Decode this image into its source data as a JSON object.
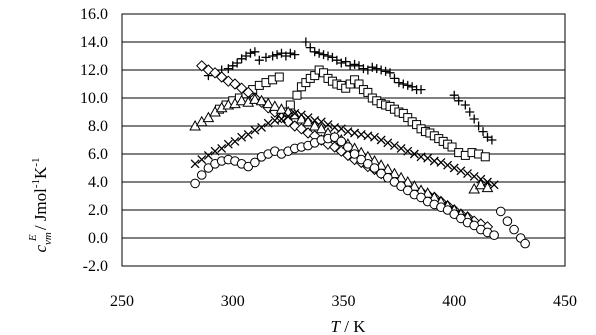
{
  "chart_data": {
    "type": "scatter",
    "title": "",
    "xlabel": "T / K",
    "ylabel": "c_vm^E / Jmol^-1 K^-1",
    "xlabel_parts": {
      "var": "T",
      "rest": " / K"
    },
    "ylabel_parts": {
      "var": "c",
      "sub": "vm",
      "sup": "E",
      "rest": " / Jmol",
      "exp1": "-1",
      "unit2": "K",
      "exp2": "-1"
    },
    "xlim": [
      250,
      450
    ],
    "ylim": [
      -2.0,
      16.0
    ],
    "x_ticks": [
      "250",
      "300",
      "350",
      "400",
      "450"
    ],
    "y_ticks": [
      "-2.0",
      "0.0",
      "2.0",
      "4.0",
      "6.0",
      "8.0",
      "10.0",
      "12.0",
      "14.0",
      "16.0"
    ],
    "grid": "horizontal",
    "legend": "none",
    "series": [
      {
        "marker": "plus",
        "points": [
          [
            289,
            11.6
          ],
          [
            292,
            11.8
          ],
          [
            295,
            12.0
          ],
          [
            298,
            12.1
          ],
          [
            300,
            12.3
          ],
          [
            302,
            12.5
          ],
          [
            304,
            12.8
          ],
          [
            306,
            13.0
          ],
          [
            308,
            13.2
          ],
          [
            310,
            13.3
          ],
          [
            312,
            12.7
          ],
          [
            315,
            12.9
          ],
          [
            318,
            13.0
          ],
          [
            320,
            13.1
          ],
          [
            322,
            13.2
          ],
          [
            324,
            13.0
          ],
          [
            326,
            13.2
          ],
          [
            328,
            13.1
          ],
          [
            333,
            14.0
          ],
          [
            335,
            13.6
          ],
          [
            337,
            13.3
          ],
          [
            339,
            13.2
          ],
          [
            341,
            13.1
          ],
          [
            343,
            13.0
          ],
          [
            345,
            12.9
          ],
          [
            347,
            12.7
          ],
          [
            349,
            12.5
          ],
          [
            351,
            12.6
          ],
          [
            353,
            12.3
          ],
          [
            355,
            12.4
          ],
          [
            357,
            12.3
          ],
          [
            359,
            12.1
          ],
          [
            361,
            12.0
          ],
          [
            363,
            12.2
          ],
          [
            365,
            12.1
          ],
          [
            367,
            12.0
          ],
          [
            369,
            11.9
          ],
          [
            371,
            11.8
          ],
          [
            373,
            11.4
          ],
          [
            375,
            11.1
          ],
          [
            377,
            11.0
          ],
          [
            379,
            10.9
          ],
          [
            381,
            10.8
          ],
          [
            383,
            10.6
          ],
          [
            385,
            10.6
          ],
          [
            400,
            10.2
          ],
          [
            402,
            9.8
          ],
          [
            405,
            9.5
          ],
          [
            407,
            9.0
          ],
          [
            409,
            8.5
          ],
          [
            411,
            8.0
          ],
          [
            413,
            7.6
          ],
          [
            415,
            7.2
          ],
          [
            417,
            7.0
          ]
        ]
      },
      {
        "marker": "square",
        "points": [
          [
            294,
            9.2
          ],
          [
            297,
            9.5
          ],
          [
            300,
            9.8
          ],
          [
            303,
            10.0
          ],
          [
            306,
            10.3
          ],
          [
            309,
            10.6
          ],
          [
            312,
            10.9
          ],
          [
            315,
            11.1
          ],
          [
            318,
            11.3
          ],
          [
            321,
            11.5
          ],
          [
            323,
            9.0
          ],
          [
            326,
            9.5
          ],
          [
            329,
            10.2
          ],
          [
            331,
            10.8
          ],
          [
            333,
            11.1
          ],
          [
            335,
            11.4
          ],
          [
            337,
            11.6
          ],
          [
            339,
            12.0
          ],
          [
            341,
            11.8
          ],
          [
            343,
            11.4
          ],
          [
            345,
            11.2
          ],
          [
            347,
            11.0
          ],
          [
            349,
            10.9
          ],
          [
            351,
            10.7
          ],
          [
            353,
            11.0
          ],
          [
            355,
            11.3
          ],
          [
            357,
            11.0
          ],
          [
            359,
            10.6
          ],
          [
            361,
            10.4
          ],
          [
            363,
            10.0
          ],
          [
            365,
            9.8
          ],
          [
            367,
            9.6
          ],
          [
            369,
            9.5
          ],
          [
            371,
            9.4
          ],
          [
            373,
            9.2
          ],
          [
            375,
            9.0
          ],
          [
            377,
            8.9
          ],
          [
            379,
            8.6
          ],
          [
            381,
            8.3
          ],
          [
            383,
            8.1
          ],
          [
            385,
            7.8
          ],
          [
            387,
            7.6
          ],
          [
            389,
            7.5
          ],
          [
            391,
            7.3
          ],
          [
            393,
            7.1
          ],
          [
            395,
            6.9
          ],
          [
            397,
            6.7
          ],
          [
            399,
            6.5
          ],
          [
            402,
            6.1
          ],
          [
            405,
            5.9
          ],
          [
            408,
            6.1
          ],
          [
            411,
            6.0
          ],
          [
            414,
            5.8
          ]
        ]
      },
      {
        "marker": "diamond",
        "points": [
          [
            286,
            12.3
          ],
          [
            289,
            12.0
          ],
          [
            292,
            11.8
          ],
          [
            295,
            11.5
          ],
          [
            298,
            11.2
          ],
          [
            301,
            11.0
          ],
          [
            304,
            10.7
          ],
          [
            307,
            10.4
          ],
          [
            310,
            10.0
          ],
          [
            313,
            9.7
          ],
          [
            316,
            9.3
          ],
          [
            319,
            9.0
          ],
          [
            322,
            8.6
          ],
          [
            325,
            8.3
          ],
          [
            328,
            8.0
          ],
          [
            331,
            7.8
          ],
          [
            334,
            7.5
          ],
          [
            337,
            7.3
          ],
          [
            340,
            7.0
          ],
          [
            343,
            6.7
          ],
          [
            346,
            6.5
          ],
          [
            349,
            6.2
          ],
          [
            352,
            5.9
          ],
          [
            355,
            5.6
          ],
          [
            358,
            5.4
          ],
          [
            361,
            5.1
          ],
          [
            364,
            4.9
          ],
          [
            367,
            4.6
          ],
          [
            370,
            4.4
          ],
          [
            373,
            4.1
          ],
          [
            376,
            3.9
          ],
          [
            379,
            3.7
          ],
          [
            382,
            3.5
          ],
          [
            385,
            3.3
          ],
          [
            388,
            3.1
          ],
          [
            391,
            2.9
          ],
          [
            394,
            2.6
          ],
          [
            397,
            2.3
          ],
          [
            400,
            2.0
          ],
          [
            403,
            1.7
          ],
          [
            406,
            1.5
          ],
          [
            409,
            1.2
          ],
          [
            412,
            1.0
          ],
          [
            415,
            0.8
          ]
        ]
      },
      {
        "marker": "triangle",
        "points": [
          [
            283,
            8.0
          ],
          [
            286,
            8.3
          ],
          [
            289,
            8.6
          ],
          [
            292,
            9.0
          ],
          [
            295,
            9.3
          ],
          [
            298,
            9.5
          ],
          [
            301,
            9.6
          ],
          [
            304,
            9.8
          ],
          [
            307,
            9.7
          ],
          [
            310,
            9.9
          ],
          [
            313,
            9.8
          ],
          [
            316,
            9.6
          ],
          [
            319,
            9.4
          ],
          [
            322,
            9.2
          ],
          [
            325,
            9.0
          ],
          [
            328,
            8.8
          ],
          [
            331,
            8.5
          ],
          [
            334,
            8.3
          ],
          [
            337,
            8.0
          ],
          [
            340,
            7.8
          ],
          [
            343,
            7.5
          ],
          [
            346,
            7.2
          ],
          [
            349,
            7.0
          ],
          [
            352,
            6.7
          ],
          [
            355,
            6.4
          ],
          [
            358,
            6.1
          ],
          [
            361,
            5.8
          ],
          [
            364,
            5.5
          ],
          [
            367,
            5.2
          ],
          [
            370,
            4.9
          ],
          [
            373,
            4.6
          ],
          [
            376,
            4.3
          ],
          [
            379,
            4.0
          ],
          [
            382,
            3.7
          ],
          [
            385,
            3.4
          ],
          [
            388,
            3.2
          ],
          [
            391,
            2.9
          ],
          [
            394,
            2.6
          ],
          [
            397,
            2.3
          ],
          [
            400,
            2.0
          ],
          [
            403,
            1.7
          ],
          [
            406,
            1.5
          ],
          [
            409,
            3.5
          ],
          [
            412,
            3.8
          ],
          [
            415,
            3.6
          ]
        ]
      },
      {
        "marker": "cross",
        "points": [
          [
            283,
            5.3
          ],
          [
            286,
            5.6
          ],
          [
            289,
            5.9
          ],
          [
            292,
            6.2
          ],
          [
            295,
            6.4
          ],
          [
            298,
            6.7
          ],
          [
            301,
            6.9
          ],
          [
            304,
            7.2
          ],
          [
            307,
            7.4
          ],
          [
            310,
            7.7
          ],
          [
            313,
            7.9
          ],
          [
            316,
            8.2
          ],
          [
            319,
            8.4
          ],
          [
            322,
            8.5
          ],
          [
            325,
            8.7
          ],
          [
            328,
            8.9
          ],
          [
            331,
            8.8
          ],
          [
            334,
            8.6
          ],
          [
            337,
            8.4
          ],
          [
            340,
            8.3
          ],
          [
            343,
            8.1
          ],
          [
            346,
            7.9
          ],
          [
            349,
            7.8
          ],
          [
            352,
            7.6
          ],
          [
            355,
            7.5
          ],
          [
            358,
            7.4
          ],
          [
            361,
            7.3
          ],
          [
            364,
            7.2
          ],
          [
            367,
            7.0
          ],
          [
            370,
            6.8
          ],
          [
            373,
            6.6
          ],
          [
            376,
            6.4
          ],
          [
            379,
            6.2
          ],
          [
            382,
            6.0
          ],
          [
            385,
            5.8
          ],
          [
            388,
            5.7
          ],
          [
            391,
            5.5
          ],
          [
            394,
            5.4
          ],
          [
            397,
            5.2
          ],
          [
            400,
            5.0
          ],
          [
            403,
            4.8
          ],
          [
            406,
            4.6
          ],
          [
            409,
            4.4
          ],
          [
            412,
            4.2
          ],
          [
            415,
            4.0
          ],
          [
            418,
            3.8
          ]
        ]
      },
      {
        "marker": "circle",
        "points": [
          [
            283,
            3.9
          ],
          [
            286,
            4.5
          ],
          [
            289,
            5.0
          ],
          [
            292,
            5.3
          ],
          [
            295,
            5.5
          ],
          [
            298,
            5.6
          ],
          [
            301,
            5.5
          ],
          [
            304,
            5.3
          ],
          [
            307,
            5.1
          ],
          [
            310,
            5.4
          ],
          [
            313,
            5.8
          ],
          [
            316,
            6.0
          ],
          [
            319,
            6.2
          ],
          [
            322,
            6.0
          ],
          [
            325,
            6.2
          ],
          [
            328,
            6.4
          ],
          [
            331,
            6.5
          ],
          [
            334,
            6.6
          ],
          [
            337,
            6.8
          ],
          [
            340,
            7.0
          ],
          [
            343,
            7.1
          ],
          [
            346,
            7.2
          ],
          [
            349,
            6.9
          ],
          [
            352,
            6.5
          ],
          [
            355,
            6.0
          ],
          [
            358,
            5.6
          ],
          [
            361,
            5.3
          ],
          [
            364,
            5.0
          ],
          [
            367,
            4.6
          ],
          [
            370,
            4.3
          ],
          [
            373,
            4.0
          ],
          [
            376,
            3.7
          ],
          [
            379,
            3.4
          ],
          [
            382,
            3.1
          ],
          [
            385,
            2.9
          ],
          [
            388,
            2.6
          ],
          [
            391,
            2.4
          ],
          [
            394,
            2.2
          ],
          [
            397,
            2.0
          ],
          [
            400,
            1.7
          ],
          [
            403,
            1.4
          ],
          [
            406,
            1.1
          ],
          [
            409,
            0.9
          ],
          [
            412,
            0.6
          ],
          [
            415,
            0.4
          ],
          [
            418,
            0.2
          ],
          [
            421,
            1.9
          ],
          [
            424,
            1.2
          ],
          [
            427,
            0.6
          ],
          [
            430,
            0.0
          ],
          [
            432,
            -0.4
          ]
        ]
      }
    ]
  }
}
